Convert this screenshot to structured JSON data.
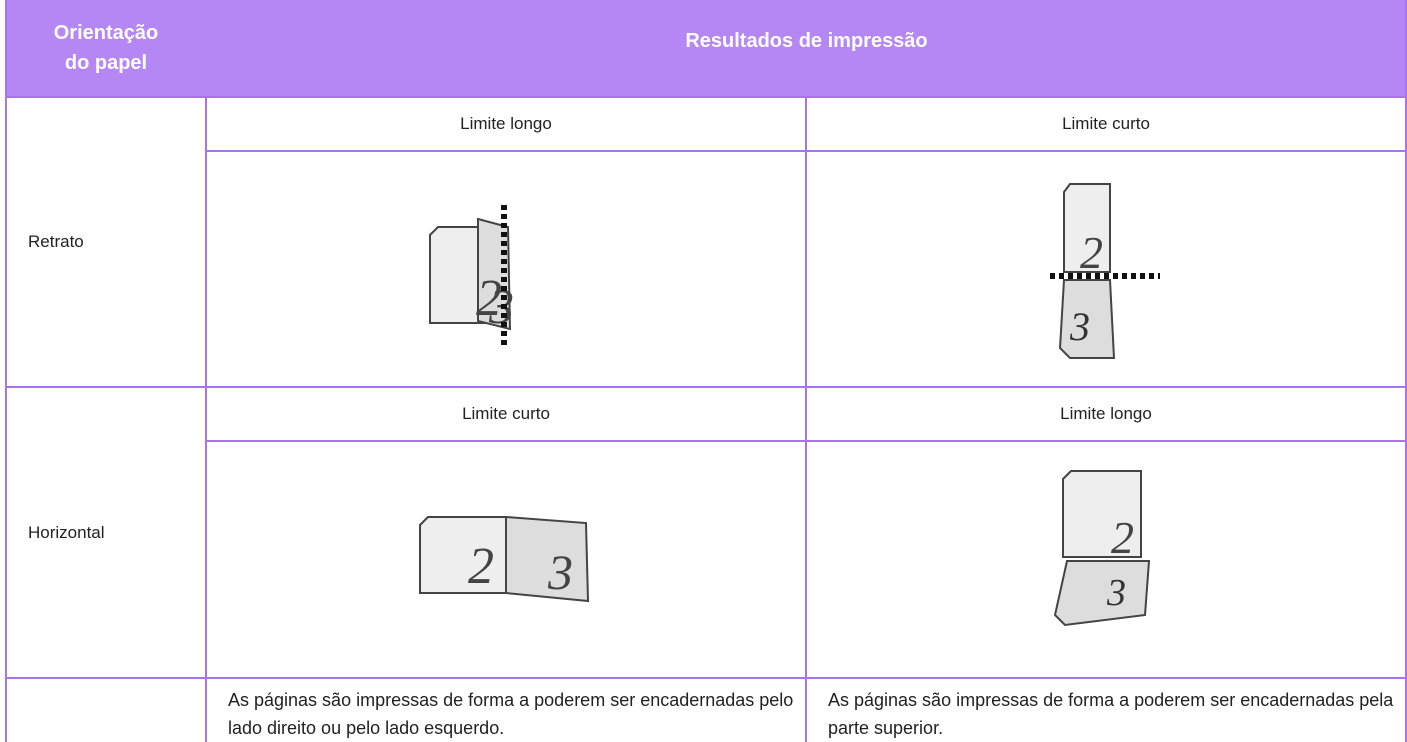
{
  "header": {
    "orientation_lines": [
      "Orientação",
      "do papel"
    ],
    "results": "Resultados de impressão"
  },
  "rows": [
    {
      "label": "Retrato",
      "options": [
        "Limite longo",
        "Limite curto"
      ]
    },
    {
      "label": "Horizontal",
      "options": [
        "Limite curto",
        "Limite longo"
      ]
    }
  ],
  "notes": [
    "As páginas são impressas de forma a poderem ser encadernadas pelo lado direito ou pelo lado esquerdo.",
    "As páginas são impressas de forma a poderem ser encadernadas pela parte superior."
  ]
}
